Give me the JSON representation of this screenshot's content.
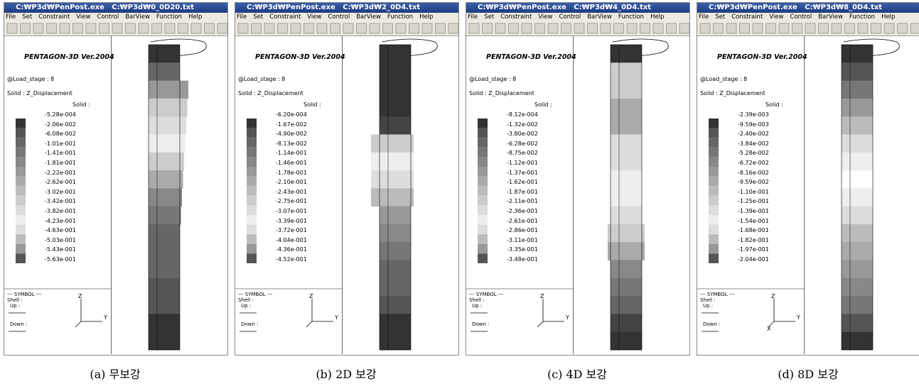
{
  "panels": [
    {
      "title_bar": "C:₩P3d₩PenPost.exe   C:₩P3d₩0_0D20.txt",
      "menu": [
        "File",
        "Set",
        "Constraint",
        "View",
        "Control",
        "BarView",
        "Function",
        "Help"
      ],
      "app_name": "PENTAGON-3D Ver.2004",
      "load_stage": "@Load_stage : 8",
      "solid_label": "Solid : Z_Displacement",
      "legend_header": "Solid :",
      "legend_values": [
        "-5.28e-004",
        "-2.06e-002",
        "-6.08e-002",
        "-1.01e-001",
        "-1.41e-001",
        "-1.81e-001",
        "-2.22e-001",
        "-2.62e-001",
        "-3.02e-001",
        "-3.42e-001",
        "-3.82e-001",
        "-4.23e-001",
        "-4.63e-001",
        "-5.03e-001",
        "-5.43e-001",
        "-5.63e-001"
      ],
      "symbol": {
        "header": "--- SYMBOL ---",
        "shell": "Shell :",
        "up": "Up :",
        "down": "Down :"
      },
      "axes": [
        "Z",
        "Y"
      ],
      "caption": "(a) 무보강"
    },
    {
      "title_bar": "C:₩P3d₩PenPost.exe   C:₩P3d₩2_0D4.txt",
      "menu": [
        "File",
        "Set",
        "Constraint",
        "View",
        "Control",
        "BarView",
        "Function",
        "Help"
      ],
      "app_name": "PENTAGON-3D Ver.2004",
      "load_stage": "@Load_stage : 8",
      "solid_label": "Solid : Z_Displacement",
      "legend_header": "Solid :",
      "legend_values": [
        "-6.20e-004",
        "-1.67e-002",
        "-4.90e-002",
        "-8.13e-002",
        "-1.14e-001",
        "-1.46e-001",
        "-1.78e-001",
        "-2.10e-001",
        "-2.43e-001",
        "-2.75e-001",
        "-3.07e-001",
        "-3.39e-001",
        "-3.72e-001",
        "-4.04e-001",
        "-4.36e-001",
        "-4.52e-001"
      ],
      "symbol": {
        "header": "--- SYMBOL ---",
        "shell": "Shell :",
        "up": "Up :",
        "down": "Down :"
      },
      "axes": [
        "Z",
        "Y"
      ],
      "caption": "(b) 2D 보강"
    },
    {
      "title_bar": "C:₩P3d₩PenPost.exe   C:₩P3d₩4_0D4.txt",
      "menu": [
        "File",
        "Set",
        "Constraint",
        "View",
        "Control",
        "BarView",
        "Function",
        "Help"
      ],
      "app_name": "PENTAGON-3D Ver.2004",
      "load_stage": "@Load_stage : 8",
      "solid_label": "Solid : Z_Displacement",
      "legend_header": "Solid :",
      "legend_values": [
        "-8.12e-004",
        "-1.32e-002",
        "-3.80e-002",
        "-6.28e-002",
        "-8.75e-002",
        "-1.12e-001",
        "-1.37e-001",
        "-1.62e-001",
        "-1.87e-001",
        "-2.11e-001",
        "-2.36e-001",
        "-2.61e-001",
        "-2.86e-001",
        "-3.11e-001",
        "-3.35e-001",
        "-3.48e-001"
      ],
      "symbol": {
        "header": "--- SYMBOL ---",
        "shell": "Shell :",
        "up": "Up :",
        "down": "Down :"
      },
      "axes": [
        "Z",
        "Y"
      ],
      "caption": "(c) 4D 보강"
    },
    {
      "title_bar": "C:₩P3d₩PenPost.exe   C:₩P3d₩8_0D4.txt",
      "menu": [
        "File",
        "Set",
        "Constraint",
        "View",
        "Control",
        "BarView",
        "Function",
        "Help"
      ],
      "app_name": "PENTAGON-3D Ver.2004",
      "load_stage": "@Load_stage : 8",
      "solid_label": "Solid : Z_Displacement",
      "legend_header": "Solid :",
      "legend_values": [
        "-2.39e-003",
        "-9.59e-003",
        "-2.40e-002",
        "-3.84e-002",
        "-5.28e-002",
        "-6.72e-002",
        "-8.16e-002",
        "-9.59e-002",
        "-1.10e-001",
        "-1.25e-001",
        "-1.39e-001",
        "-1.54e-001",
        "-1.68e-001",
        "-1.82e-001",
        "-1.97e-001",
        "-2.04e-001"
      ],
      "symbol": {
        "header": "--- SYMBOL ---",
        "shell": "Shell :",
        "up": "Up :",
        "down": "Down :"
      },
      "axes": [
        "Z",
        "Y",
        "X"
      ],
      "caption": "(d) 8D 보강"
    }
  ]
}
